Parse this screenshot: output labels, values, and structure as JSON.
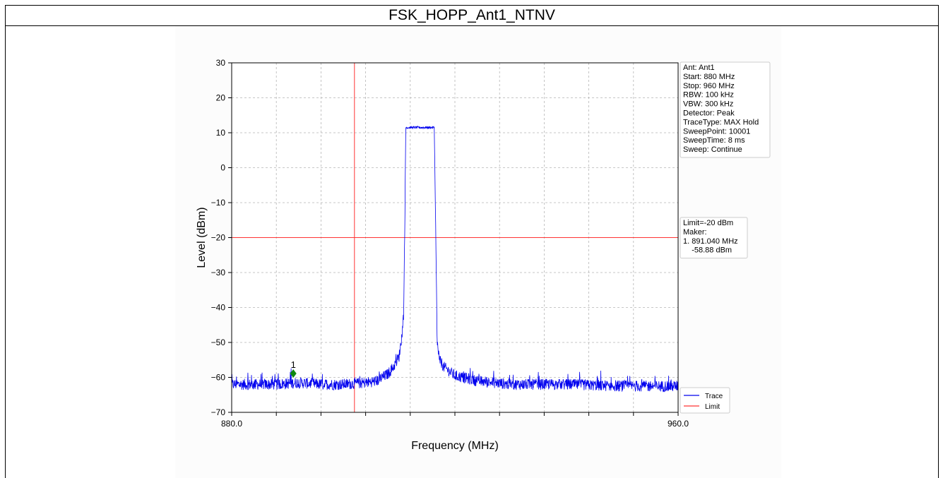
{
  "page": {
    "title": "FSK_HOPP_Ant1_NTNV"
  },
  "colors": {
    "trace": "#0000ee",
    "limit": "#ff3333",
    "marker": "#118811",
    "grid": "#b5b5b5"
  },
  "chart_data": {
    "type": "line",
    "title": "",
    "xlabel": "Frequency (MHz)",
    "ylabel": "Level (dBm)",
    "xlim": [
      880,
      960
    ],
    "ylim": [
      -70,
      30
    ],
    "x_tick_labels": [
      "880.0",
      "960.0"
    ],
    "x_minor_ticks": [
      880,
      888,
      896,
      904,
      912,
      920,
      928,
      936,
      944,
      952,
      960
    ],
    "y_ticks": [
      30,
      20,
      10,
      0,
      -10,
      -20,
      -30,
      -40,
      -50,
      -60,
      -70
    ],
    "y_tick_labels": [
      "30",
      "20",
      "10",
      "0",
      "−10",
      "−20",
      "−30",
      "−40",
      "−50",
      "−60",
      "−70"
    ],
    "grid": true,
    "series": [
      {
        "name": "Trace",
        "x": [
          880,
          884,
          888,
          892,
          896,
          900,
          904,
          906,
          908,
          909,
          910,
          910.5,
          910.8,
          911,
          911.2,
          911.5,
          913,
          915,
          916.3,
          916.5,
          916.8,
          917,
          917.3,
          918,
          920,
          924,
          930,
          940,
          950,
          960
        ],
        "y": [
          -62,
          -62,
          -62,
          -61.5,
          -62,
          -62,
          -61.5,
          -61,
          -59,
          -57,
          -54,
          -48,
          -42,
          -20,
          11.5,
          11.5,
          11.5,
          11.5,
          11.5,
          -10,
          -48,
          -53,
          -55,
          -57,
          -59.5,
          -61,
          -62,
          -62,
          -62.5,
          -62.5
        ],
        "noise_db": 1.6
      }
    ],
    "limit": {
      "name": "Limit",
      "value": -20,
      "unit": "dBm"
    },
    "vertical_marker_line": {
      "x": 902
    },
    "markers": [
      {
        "label": "1",
        "x": 891.04,
        "y": -58.88
      }
    ],
    "legend": {
      "placement": "bottom-right",
      "entries": [
        "Trace",
        "Limit"
      ]
    },
    "info_box": {
      "lines": [
        "Ant: Ant1",
        "Start: 880 MHz",
        "Stop: 960 MHz",
        "RBW: 100 kHz",
        "VBW: 300 kHz",
        "Detector: Peak",
        "TraceType: MAX Hold",
        "SweepPoint: 10001",
        "SweepTime: 8 ms",
        "Sweep: Continue"
      ]
    },
    "limit_box": {
      "lines": [
        "Limit=-20 dBm",
        "Maker:",
        "1. 891.040 MHz",
        "    -58.88 dBm"
      ]
    }
  }
}
